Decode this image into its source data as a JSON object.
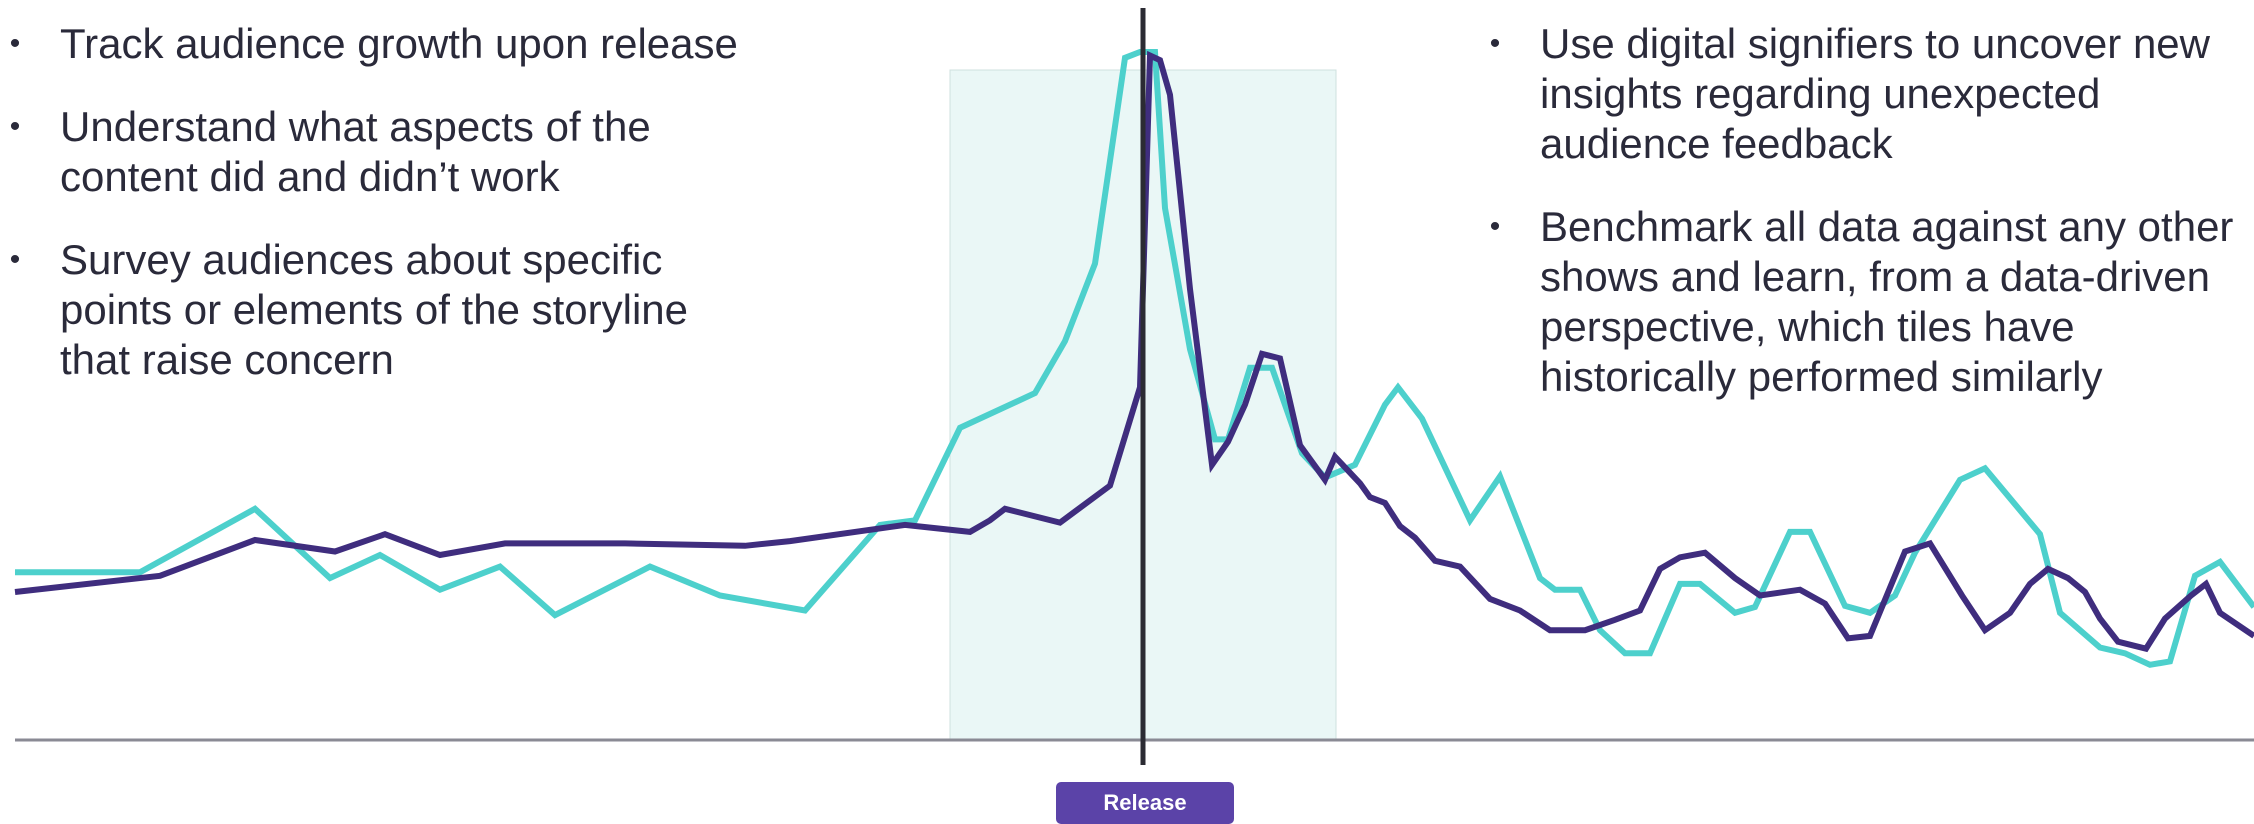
{
  "bullets_left": [
    "Track audience growth upon release",
    "Understand what aspects of the content did and didn’t work",
    "Survey audiences about specific points or elements of the storyline that raise concern"
  ],
  "bullets_right": [
    "Use digital signifiers to uncover new insights regarding unexpected audience feedback",
    "Benchmark all data against any other shows and learn, from a data-driven perspective, which tiles have historically performed similarly"
  ],
  "bullet_glyph": "•",
  "chart_data": {
    "type": "line",
    "title": "",
    "xlabel": "",
    "ylabel": "",
    "xlim": [
      0,
      2254
    ],
    "ylim": [
      0,
      640
    ],
    "grid": false,
    "legend": "none",
    "release_marker": {
      "x": 1143,
      "label": "Release"
    },
    "highlight_range": [
      950,
      1336
    ],
    "series": [
      {
        "color": "#4dd0cc",
        "points": [
          [
            15,
            145
          ],
          [
            140,
            145
          ],
          [
            255,
            200
          ],
          [
            330,
            140
          ],
          [
            380,
            160
          ],
          [
            440,
            130
          ],
          [
            500,
            150
          ],
          [
            555,
            108
          ],
          [
            650,
            150
          ],
          [
            720,
            125
          ],
          [
            805,
            112
          ],
          [
            880,
            186
          ],
          [
            915,
            190
          ],
          [
            960,
            270
          ],
          [
            1035,
            300
          ],
          [
            1065,
            345
          ],
          [
            1095,
            412
          ],
          [
            1125,
            590
          ],
          [
            1140,
            595
          ],
          [
            1155,
            595
          ],
          [
            1165,
            460
          ],
          [
            1190,
            338
          ],
          [
            1215,
            260
          ],
          [
            1228,
            260
          ],
          [
            1250,
            322
          ],
          [
            1272,
            322
          ],
          [
            1302,
            248
          ],
          [
            1325,
            227
          ],
          [
            1355,
            238
          ],
          [
            1385,
            290
          ],
          [
            1398,
            305
          ],
          [
            1422,
            278
          ],
          [
            1470,
            190
          ],
          [
            1500,
            228
          ],
          [
            1540,
            140
          ],
          [
            1555,
            130
          ],
          [
            1580,
            130
          ],
          [
            1600,
            95
          ],
          [
            1625,
            75
          ],
          [
            1650,
            75
          ],
          [
            1680,
            135
          ],
          [
            1700,
            135
          ],
          [
            1735,
            110
          ],
          [
            1755,
            115
          ],
          [
            1790,
            180
          ],
          [
            1810,
            180
          ],
          [
            1845,
            116
          ],
          [
            1870,
            110
          ],
          [
            1895,
            125
          ],
          [
            1915,
            162
          ],
          [
            1960,
            225
          ],
          [
            1985,
            235
          ],
          [
            2040,
            178
          ],
          [
            2060,
            110
          ],
          [
            2100,
            80
          ],
          [
            2125,
            75
          ],
          [
            2150,
            65
          ],
          [
            2170,
            68
          ],
          [
            2195,
            142
          ],
          [
            2220,
            154
          ],
          [
            2254,
            115
          ]
        ]
      },
      {
        "color": "#3f2d7e",
        "points": [
          [
            15,
            128
          ],
          [
            160,
            142
          ],
          [
            255,
            173
          ],
          [
            335,
            163
          ],
          [
            385,
            178
          ],
          [
            440,
            160
          ],
          [
            505,
            170
          ],
          [
            625,
            170
          ],
          [
            745,
            168
          ],
          [
            790,
            172
          ],
          [
            905,
            186
          ],
          [
            970,
            180
          ],
          [
            990,
            190
          ],
          [
            1005,
            200
          ],
          [
            1060,
            188
          ],
          [
            1110,
            220
          ],
          [
            1140,
            305
          ],
          [
            1150,
            592
          ],
          [
            1160,
            588
          ],
          [
            1170,
            558
          ],
          [
            1190,
            390
          ],
          [
            1212,
            238
          ],
          [
            1228,
            258
          ],
          [
            1245,
            290
          ],
          [
            1262,
            334
          ],
          [
            1280,
            330
          ],
          [
            1300,
            255
          ],
          [
            1325,
            225
          ],
          [
            1335,
            245
          ],
          [
            1360,
            222
          ],
          [
            1370,
            210
          ],
          [
            1385,
            205
          ],
          [
            1400,
            185
          ],
          [
            1415,
            175
          ],
          [
            1435,
            155
          ],
          [
            1460,
            150
          ],
          [
            1490,
            122
          ],
          [
            1520,
            112
          ],
          [
            1550,
            95
          ],
          [
            1585,
            95
          ],
          [
            1615,
            104
          ],
          [
            1640,
            112
          ],
          [
            1660,
            148
          ],
          [
            1680,
            158
          ],
          [
            1705,
            162
          ],
          [
            1735,
            140
          ],
          [
            1760,
            125
          ],
          [
            1800,
            130
          ],
          [
            1825,
            118
          ],
          [
            1848,
            88
          ],
          [
            1870,
            90
          ],
          [
            1905,
            163
          ],
          [
            1930,
            170
          ],
          [
            1962,
            125
          ],
          [
            1985,
            95
          ],
          [
            2010,
            110
          ],
          [
            2030,
            135
          ],
          [
            2048,
            148
          ],
          [
            2068,
            140
          ],
          [
            2085,
            128
          ],
          [
            2100,
            105
          ],
          [
            2118,
            85
          ],
          [
            2146,
            79
          ],
          [
            2165,
            105
          ],
          [
            2191,
            125
          ],
          [
            2206,
            135
          ],
          [
            2220,
            110
          ],
          [
            2254,
            90
          ]
        ]
      }
    ]
  },
  "colors": {
    "accent_teal": "#4dd0cc",
    "accent_purple": "#3f2d7e",
    "highlight_fill": "#eaf7f6",
    "release_badge": "#5b43a8",
    "axis": "#8a8a94",
    "text": "#2a2a3a"
  }
}
